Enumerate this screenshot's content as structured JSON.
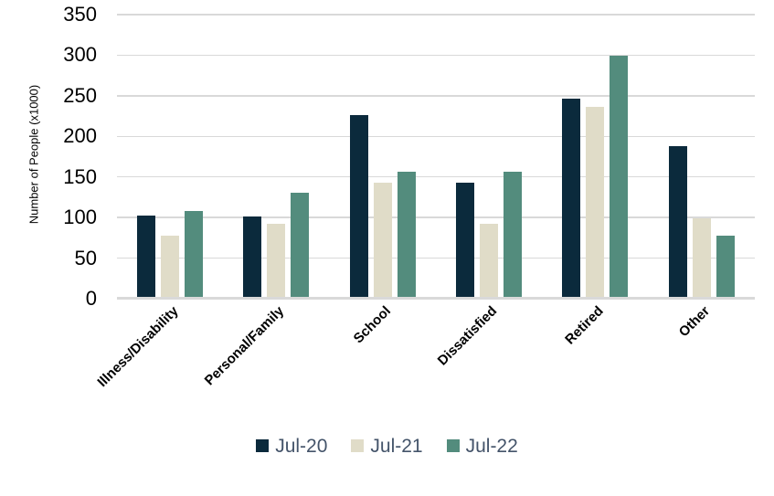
{
  "chart_data": {
    "type": "bar",
    "title": "",
    "xlabel": "",
    "ylabel": "Number of People (x1000)",
    "ylim": [
      0,
      350
    ],
    "yticks": [
      0,
      50,
      100,
      150,
      200,
      250,
      300,
      350
    ],
    "grid": true,
    "legend_position": "bottom",
    "categories": [
      "Illness/Disability",
      "Personal/Family",
      "School",
      "Dissatisfied",
      "Retired",
      "Other"
    ],
    "series": [
      {
        "name": "Jul-20",
        "color": "#0b2a3c",
        "values": [
          102,
          101,
          226,
          143,
          246,
          188
        ]
      },
      {
        "name": "Jul-21",
        "color": "#e0dcc8",
        "values": [
          78,
          92,
          143,
          92,
          236,
          99
        ]
      },
      {
        "name": "Jul-22",
        "color": "#538c7d",
        "values": [
          108,
          131,
          157,
          157,
          299,
          78
        ]
      }
    ],
    "colors": {
      "gridline": "#d9d9d9",
      "axis_line": "#d9d9d9",
      "tick_text": "#000000",
      "category_text": "#000000",
      "legend_text": "#44546a",
      "background": "#ffffff"
    }
  }
}
